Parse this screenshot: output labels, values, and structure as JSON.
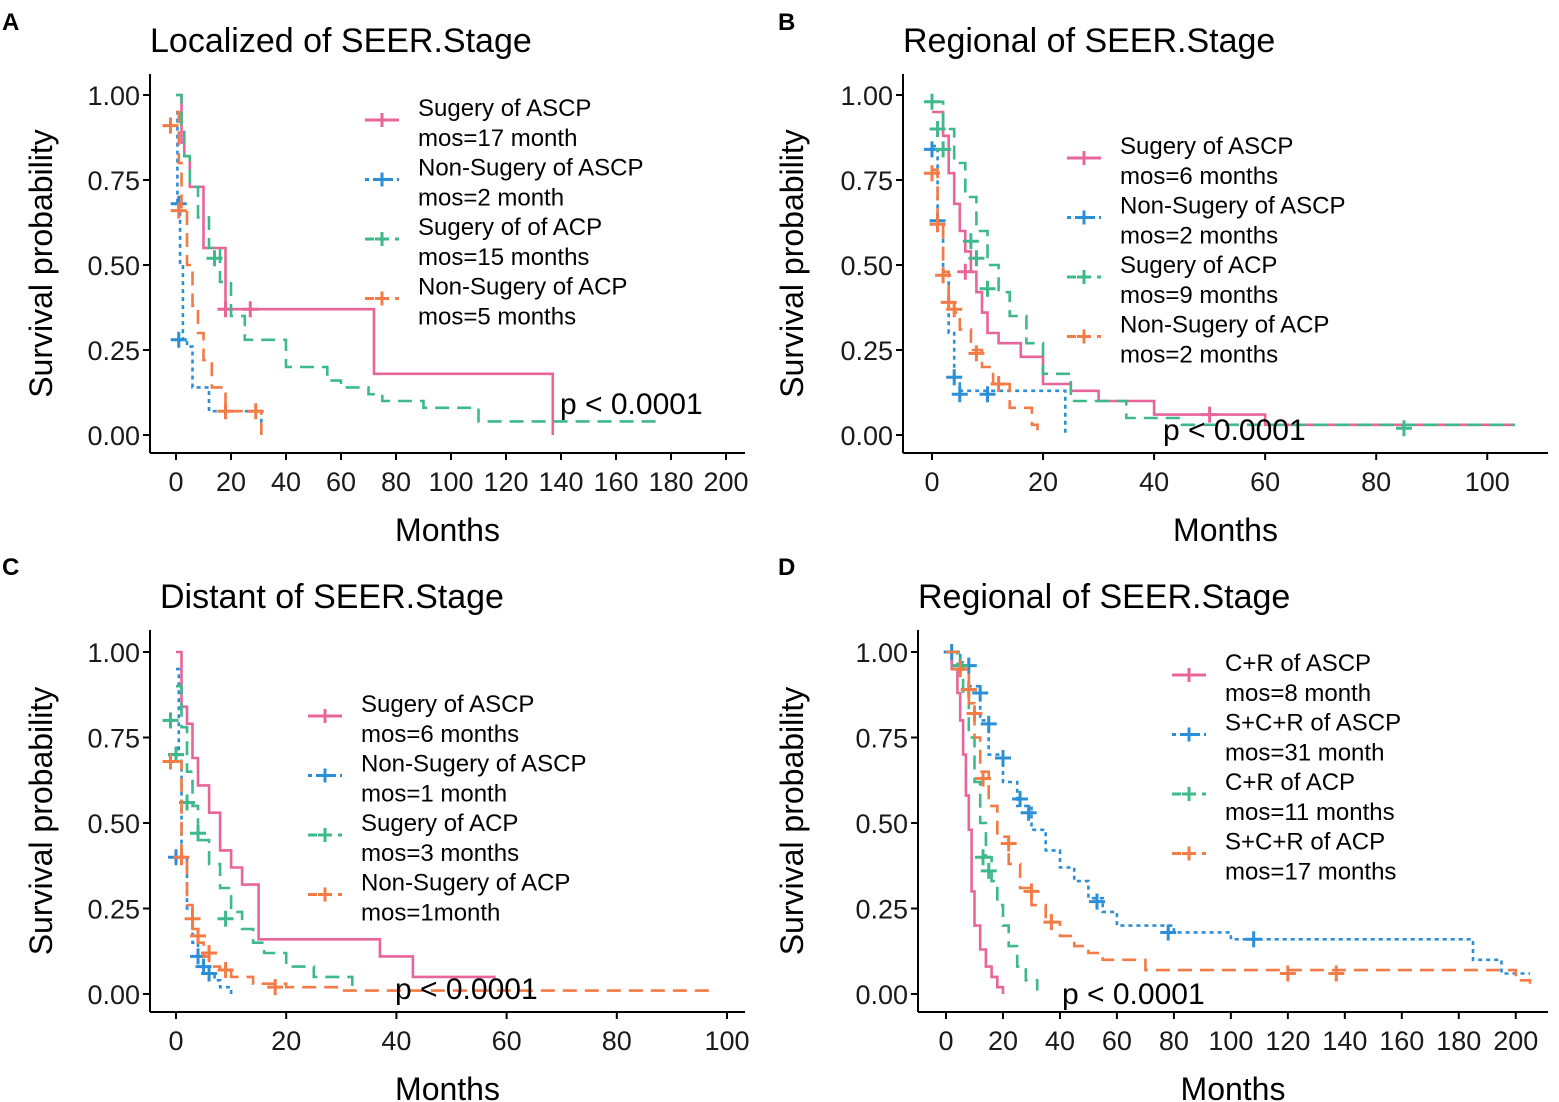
{
  "chart_data": [
    {
      "type": "line",
      "letter": "A",
      "title": "Localized of SEER.Stage",
      "xlabel": "Months",
      "ylabel": "Survival probability",
      "xlim": [
        0,
        200
      ],
      "ylim": [
        0,
        1
      ],
      "xticks": [
        "0",
        "20",
        "40",
        "60",
        "80",
        "100",
        "120",
        "140",
        "160",
        "180",
        "200"
      ],
      "yticks": [
        "0.00",
        "0.25",
        "0.50",
        "0.75",
        "1.00"
      ],
      "pvalue": "p < 0.0001",
      "legend_position": "top-right",
      "series": [
        {
          "name": "Sugery of ASCP",
          "name2": "mos=17 month",
          "color": "#e8659a",
          "dash": "solid",
          "x": [
            0,
            2,
            3,
            5,
            10,
            16,
            18,
            35,
            72,
            137,
            137
          ],
          "y": [
            1.0,
            0.86,
            0.82,
            0.73,
            0.55,
            0.55,
            0.37,
            0.37,
            0.18,
            0.18,
            0.0
          ],
          "censor": [
            [
              18,
              0.37
            ],
            [
              27,
              0.37
            ]
          ]
        },
        {
          "name": "Non-Sugery of ASCP",
          "name2": "mos=2 month",
          "color": "#2b8fd8",
          "dash": "dotted",
          "x": [
            0,
            0.5,
            1.5,
            2.5,
            4,
            6,
            8,
            12,
            30,
            31
          ],
          "y": [
            0.95,
            0.68,
            0.5,
            0.28,
            0.26,
            0.14,
            0.14,
            0.07,
            0.07,
            0.0
          ],
          "censor": [
            [
              1,
              0.68
            ],
            [
              1,
              0.28
            ]
          ]
        },
        {
          "name": "Sugery of of ACP",
          "name2": "mos=15 months",
          "color": "#3db98a",
          "dash": "dashed",
          "x": [
            0,
            2,
            3,
            5,
            8,
            12,
            16,
            20,
            25,
            40,
            55,
            60,
            70,
            75,
            90,
            110,
            176
          ],
          "y": [
            1.0,
            0.9,
            0.82,
            0.73,
            0.64,
            0.55,
            0.45,
            0.35,
            0.28,
            0.2,
            0.16,
            0.14,
            0.12,
            0.1,
            0.08,
            0.04,
            0.04
          ],
          "censor": [
            [
              14,
              0.52
            ]
          ]
        },
        {
          "name": "Non-Sugery of ACP",
          "name2": "mos=5 months",
          "color": "#f47b45",
          "dash": "dashed",
          "x": [
            0,
            1,
            2,
            4,
            6,
            8,
            10,
            13,
            18,
            30,
            31
          ],
          "y": [
            0.95,
            0.8,
            0.67,
            0.5,
            0.38,
            0.3,
            0.22,
            0.14,
            0.07,
            0.07,
            0.0
          ],
          "censor": [
            [
              -2,
              0.91
            ],
            [
              1,
              0.66
            ],
            [
              18,
              0.07
            ],
            [
              29,
              0.07
            ]
          ]
        }
      ]
    },
    {
      "type": "line",
      "letter": "B",
      "title": "Regional of SEER.Stage",
      "xlabel": "Months",
      "ylabel": "Survival probability",
      "xlim": [
        0,
        105
      ],
      "ylim": [
        0,
        1
      ],
      "xticks": [
        "0",
        "20",
        "40",
        "60",
        "80",
        "100"
      ],
      "yticks": [
        "0.00",
        "0.25",
        "0.50",
        "0.75",
        "1.00"
      ],
      "pvalue": "p < 0.0001",
      "legend_position": "right",
      "series": [
        {
          "name": "Sugery of ASCP",
          "name2": "mos=6 months",
          "color": "#e8659a",
          "dash": "solid",
          "x": [
            0,
            2,
            3,
            4,
            5,
            6,
            7,
            8,
            9,
            10,
            12,
            16,
            20,
            25,
            30,
            40,
            60,
            105
          ],
          "y": [
            0.95,
            0.88,
            0.77,
            0.68,
            0.6,
            0.54,
            0.48,
            0.42,
            0.36,
            0.3,
            0.27,
            0.23,
            0.15,
            0.13,
            0.1,
            0.06,
            0.03,
            0.03
          ],
          "censor": [
            [
              6,
              0.48
            ],
            [
              50,
              0.06
            ]
          ]
        },
        {
          "name": "Non-Sugery of ASCP",
          "name2": "mos=2 months",
          "color": "#2b8fd8",
          "dash": "dotted",
          "x": [
            0,
            1,
            2,
            3,
            4,
            5,
            23,
            24
          ],
          "y": [
            0.85,
            0.63,
            0.48,
            0.3,
            0.17,
            0.13,
            0.13,
            0.0
          ],
          "censor": [
            [
              0,
              0.84
            ],
            [
              1,
              0.63
            ],
            [
              4,
              0.17
            ],
            [
              5,
              0.12
            ],
            [
              10,
              0.12
            ]
          ]
        },
        {
          "name": "Sugery of ACP",
          "name2": "mos=9 months",
          "color": "#3db98a",
          "dash": "dashed",
          "x": [
            0,
            2,
            4,
            6,
            8,
            10,
            12,
            14,
            17,
            20,
            25,
            35,
            45,
            60,
            105
          ],
          "y": [
            0.98,
            0.9,
            0.8,
            0.7,
            0.6,
            0.5,
            0.42,
            0.35,
            0.27,
            0.18,
            0.1,
            0.05,
            0.03,
            0.03,
            0.03
          ],
          "censor": [
            [
              0,
              0.98
            ],
            [
              1,
              0.9
            ],
            [
              2,
              0.84
            ],
            [
              7,
              0.57
            ],
            [
              8,
              0.52
            ],
            [
              10,
              0.43
            ],
            [
              85,
              0.02
            ]
          ]
        },
        {
          "name": "Non-Sugery of ACP",
          "name2": "mos=2 months",
          "color": "#f47b45",
          "dash": "dashed",
          "x": [
            0,
            1,
            2,
            3,
            4,
            5,
            7,
            9,
            11,
            14,
            18,
            19
          ],
          "y": [
            0.78,
            0.62,
            0.48,
            0.39,
            0.36,
            0.31,
            0.25,
            0.2,
            0.15,
            0.08,
            0.03,
            0.0
          ],
          "censor": [
            [
              0,
              0.77
            ],
            [
              1,
              0.62
            ],
            [
              2,
              0.47
            ],
            [
              3,
              0.39
            ],
            [
              4,
              0.37
            ],
            [
              8,
              0.24
            ],
            [
              12,
              0.15
            ]
          ]
        }
      ]
    },
    {
      "type": "line",
      "letter": "C",
      "title": "Distant of SEER.Stage",
      "xlabel": "Months",
      "ylabel": "Survival probability",
      "xlim": [
        0,
        100
      ],
      "ylim": [
        0,
        1
      ],
      "xticks": [
        "0",
        "20",
        "40",
        "60",
        "80",
        "100"
      ],
      "yticks": [
        "0.00",
        "0.25",
        "0.50",
        "0.75",
        "1.00"
      ],
      "pvalue": "p < 0.0001",
      "legend_position": "right",
      "series": [
        {
          "name": "Sugery of ASCP",
          "name2": "mos=6 months",
          "color": "#e8659a",
          "dash": "solid",
          "x": [
            0,
            1,
            2,
            3,
            4,
            6,
            8,
            10,
            12,
            15,
            37,
            43,
            58
          ],
          "y": [
            1.0,
            0.84,
            0.79,
            0.69,
            0.61,
            0.53,
            0.42,
            0.37,
            0.32,
            0.16,
            0.11,
            0.05,
            0.05
          ],
          "censor": []
        },
        {
          "name": "Non-Sugery of ASCP",
          "name2": "mos=1 month",
          "color": "#2b8fd8",
          "dash": "dotted",
          "x": [
            0,
            0.5,
            1,
            2,
            3,
            4,
            5,
            6,
            7,
            8,
            10
          ],
          "y": [
            0.95,
            0.7,
            0.4,
            0.25,
            0.15,
            0.11,
            0.08,
            0.06,
            0.04,
            0.02,
            0.0
          ],
          "censor": [
            [
              0,
              0.7
            ],
            [
              0,
              0.4
            ],
            [
              4,
              0.11
            ],
            [
              5,
              0.08
            ],
            [
              6,
              0.06
            ]
          ]
        },
        {
          "name": "Sugery of ACP",
          "name2": "mos=3 months",
          "color": "#3db98a",
          "dash": "dashed",
          "x": [
            0,
            1,
            2,
            3,
            4,
            6,
            8,
            10,
            12,
            14,
            16,
            20,
            25,
            32
          ],
          "y": [
            0.9,
            0.78,
            0.65,
            0.55,
            0.45,
            0.38,
            0.31,
            0.24,
            0.19,
            0.15,
            0.12,
            0.08,
            0.05,
            0.02
          ],
          "censor": [
            [
              -1,
              0.8
            ],
            [
              0,
              0.7
            ],
            [
              2,
              0.56
            ],
            [
              4,
              0.47
            ],
            [
              9,
              0.22
            ]
          ]
        },
        {
          "name": "Non-Sugery of ACP",
          "name2": "mos=1month",
          "color": "#f47b45",
          "dash": "dashed",
          "x": [
            0,
            1,
            2,
            3,
            4,
            5,
            6,
            8,
            10,
            14,
            20,
            30,
            97
          ],
          "y": [
            0.68,
            0.4,
            0.26,
            0.19,
            0.15,
            0.11,
            0.08,
            0.07,
            0.05,
            0.03,
            0.02,
            0.01,
            0.01
          ],
          "censor": [
            [
              -1,
              0.68
            ],
            [
              1,
              0.4
            ],
            [
              3,
              0.22
            ],
            [
              4,
              0.17
            ],
            [
              6,
              0.12
            ],
            [
              9,
              0.07
            ],
            [
              18,
              0.02
            ]
          ]
        }
      ]
    },
    {
      "type": "line",
      "letter": "D",
      "title": "Regional of SEER.Stage",
      "xlabel": "Months",
      "ylabel": "Survival probability",
      "xlim": [
        0,
        205
      ],
      "ylim": [
        0,
        1
      ],
      "xticks": [
        "0",
        "20",
        "40",
        "60",
        "80",
        "100",
        "120",
        "140",
        "160",
        "180",
        "200"
      ],
      "yticks": [
        "0.00",
        "0.25",
        "0.50",
        "0.75",
        "1.00"
      ],
      "pvalue": "p < 0.0001",
      "legend_position": "right",
      "series": [
        {
          "name": "C+R of ASCP",
          "name2": "mos=8 month",
          "color": "#e8659a",
          "dash": "solid",
          "x": [
            0,
            2,
            4,
            5,
            6,
            7,
            8,
            9,
            10,
            12,
            14,
            16,
            18,
            20
          ],
          "y": [
            1.0,
            0.95,
            0.88,
            0.8,
            0.7,
            0.58,
            0.48,
            0.3,
            0.2,
            0.13,
            0.08,
            0.05,
            0.02,
            0.0
          ],
          "censor": []
        },
        {
          "name": "S+C+R of ASCP",
          "name2": "mos=31 month",
          "color": "#2b8fd8",
          "dash": "dotted",
          "x": [
            0,
            5,
            8,
            12,
            15,
            20,
            25,
            30,
            35,
            40,
            45,
            50,
            55,
            60,
            80,
            100,
            180,
            185,
            195,
            205
          ],
          "y": [
            1.0,
            0.97,
            0.9,
            0.8,
            0.7,
            0.62,
            0.55,
            0.48,
            0.42,
            0.37,
            0.33,
            0.28,
            0.24,
            0.2,
            0.18,
            0.16,
            0.16,
            0.1,
            0.06,
            0.06
          ],
          "censor": [
            [
              2,
              1.0
            ],
            [
              8,
              0.96
            ],
            [
              12,
              0.88
            ],
            [
              15,
              0.79
            ],
            [
              20,
              0.69
            ],
            [
              26,
              0.57
            ],
            [
              29,
              0.53
            ],
            [
              53,
              0.27
            ],
            [
              78,
              0.18
            ],
            [
              108,
              0.16
            ]
          ]
        },
        {
          "name": "C+R of ACP",
          "name2": "mos=11 months",
          "color": "#3db98a",
          "dash": "dashed",
          "x": [
            0,
            4,
            6,
            8,
            10,
            12,
            14,
            16,
            18,
            20,
            22,
            25,
            28,
            32
          ],
          "y": [
            1.0,
            0.96,
            0.88,
            0.75,
            0.62,
            0.5,
            0.4,
            0.33,
            0.26,
            0.2,
            0.14,
            0.08,
            0.04,
            0.01
          ],
          "censor": [
            [
              5,
              0.96
            ],
            [
              8,
              0.89
            ],
            [
              13,
              0.4
            ],
            [
              15,
              0.36
            ]
          ]
        },
        {
          "name": "S+C+R of ACP",
          "name2": "mos=17 months",
          "color": "#f47b45",
          "dash": "dashed",
          "x": [
            0,
            5,
            8,
            10,
            12,
            15,
            18,
            22,
            26,
            30,
            35,
            40,
            45,
            50,
            55,
            70,
            90,
            200,
            205
          ],
          "y": [
            1.0,
            0.95,
            0.85,
            0.75,
            0.65,
            0.55,
            0.46,
            0.38,
            0.31,
            0.26,
            0.21,
            0.17,
            0.14,
            0.12,
            0.1,
            0.07,
            0.07,
            0.04,
            0.03
          ],
          "censor": [
            [
              5,
              0.95
            ],
            [
              8,
              0.89
            ],
            [
              10,
              0.82
            ],
            [
              13,
              0.63
            ],
            [
              22,
              0.44
            ],
            [
              30,
              0.3
            ],
            [
              37,
              0.21
            ],
            [
              120,
              0.06
            ],
            [
              137,
              0.06
            ]
          ]
        }
      ]
    }
  ]
}
